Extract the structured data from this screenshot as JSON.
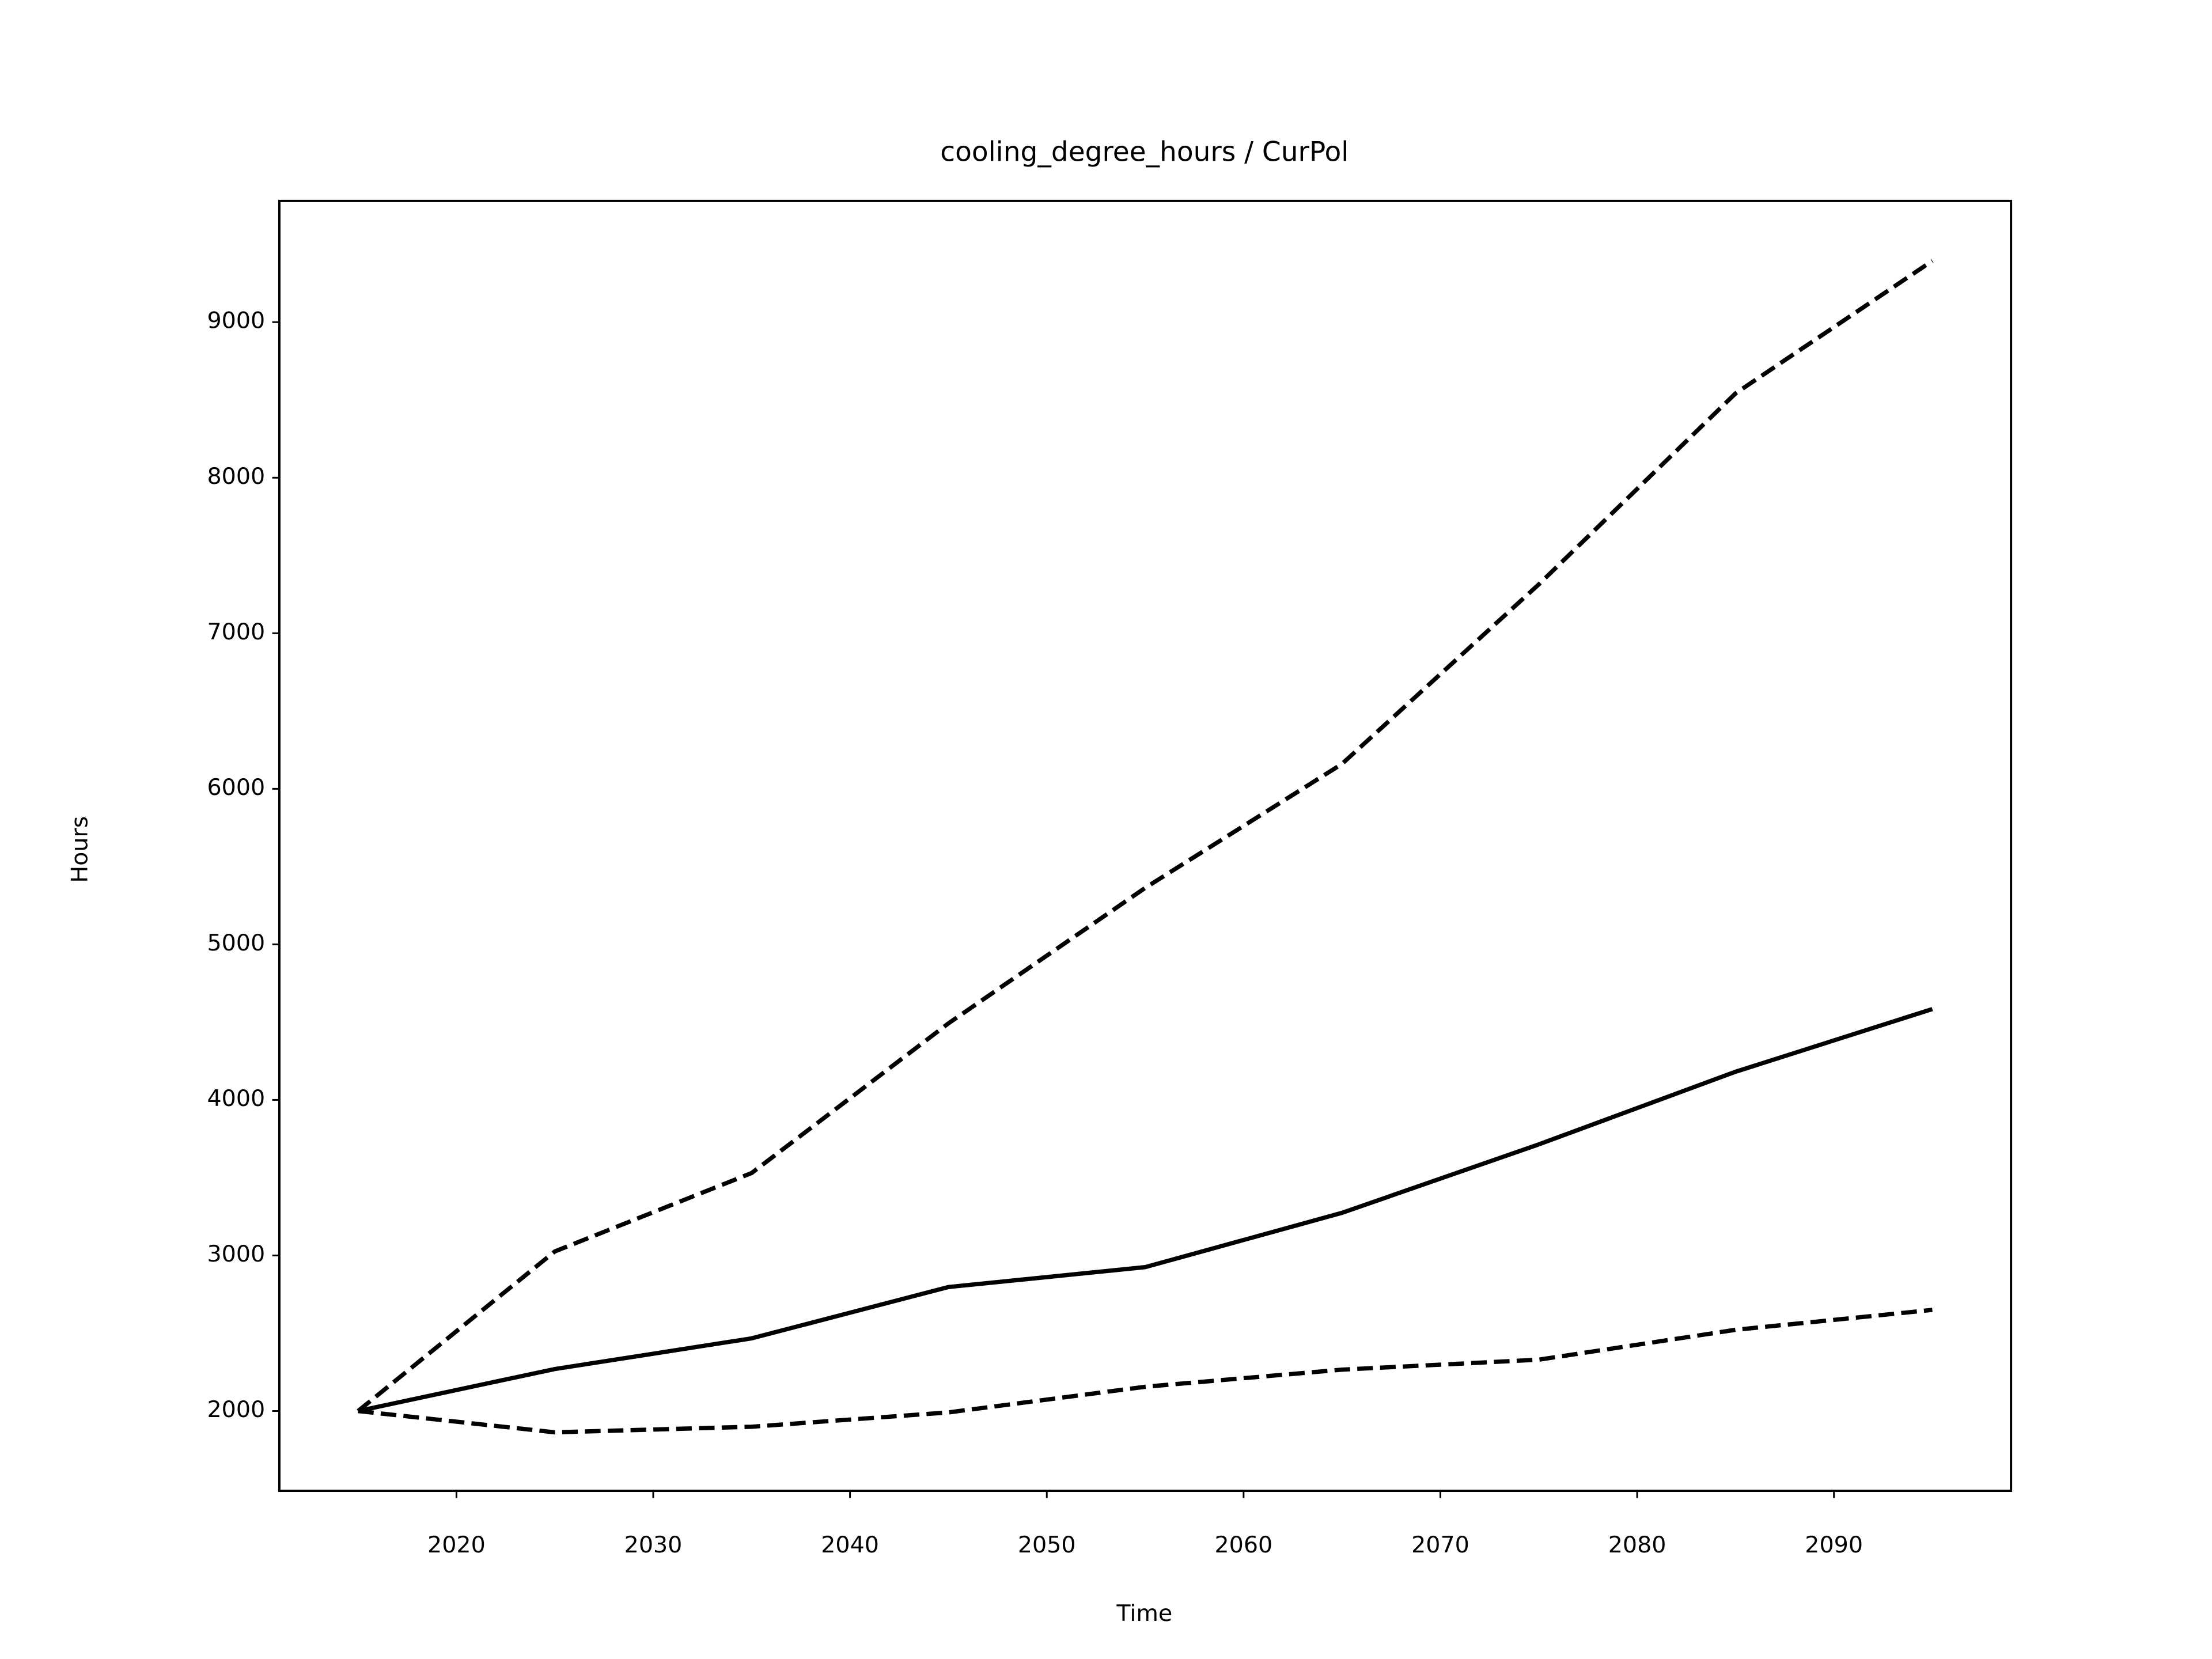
{
  "chart_data": {
    "type": "line",
    "title": "cooling_degree_hours / CurPol",
    "x_label": "Time",
    "y_label": "Hours",
    "x": [
      2015,
      2025,
      2035,
      2045,
      2055,
      2065,
      2075,
      2085,
      2095
    ],
    "series": [
      {
        "color": "#000000",
        "dashed": false,
        "values": [
          2000,
          2270,
          2467,
          2797,
          2925,
          3274,
          3714,
          4181,
          4584
        ]
      },
      {
        "color": "#000000",
        "dashed": true,
        "values": [
          2000,
          3026,
          3530,
          4492,
          5363,
          6160,
          7314,
          8542,
          9394
        ]
      },
      {
        "color": "#000000",
        "dashed": true,
        "values": [
          2000,
          1863,
          1899,
          1991,
          2156,
          2266,
          2330,
          2522,
          2650
        ]
      }
    ],
    "xlim": [
      2011,
      2099
    ],
    "xticks": [
      2020,
      2030,
      2040,
      2050,
      2060,
      2070,
      2080,
      2090
    ],
    "ylim": [
      1487,
      9779
    ],
    "yticks": [
      2000,
      3000,
      4000,
      5000,
      6000,
      7000,
      8000,
      9000
    ],
    "grid": false
  }
}
